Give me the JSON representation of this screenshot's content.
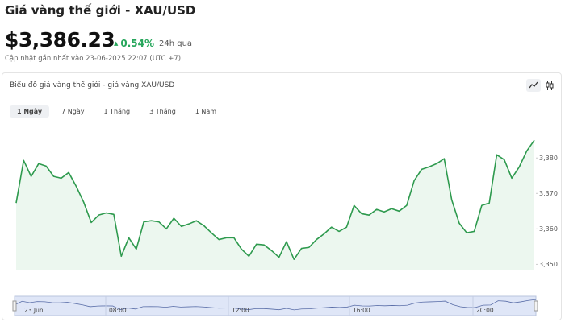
{
  "header": {
    "title": "Giá vàng thế giới - XAU/USD",
    "price": "$3,386.23",
    "change": "0.54%",
    "change_period": "24h qua",
    "updated": "Cập nhật gần nhất vào 23-06-2025 22:07 (UTC +7)"
  },
  "card": {
    "title": "Biểu đồ giá vàng thế giới - giá vàng XAU/USD",
    "tabs": [
      "1 Ngày",
      "7 Ngày",
      "1 Tháng",
      "3 Tháng",
      "1 Năm"
    ]
  },
  "navigator": {
    "labels": [
      "23 Jun",
      "08:00",
      "12:00",
      "16:00",
      "20:00"
    ]
  },
  "chart_data": {
    "type": "line",
    "color": "#2e9a4e",
    "fill": "#ecf7ef",
    "ylim": [
      3348.5,
      3390.5
    ],
    "yticks": [
      {
        "value": 3350,
        "label": "3,350"
      },
      {
        "value": 3360,
        "label": "3,360"
      },
      {
        "value": 3370,
        "label": "3,370"
      },
      {
        "value": 3380,
        "label": "3,380"
      }
    ],
    "values": [
      3367.3,
      3379.3,
      3374.8,
      3378.4,
      3377.7,
      3374.8,
      3374.3,
      3375.9,
      3372.0,
      3367.5,
      3361.8,
      3363.9,
      3364.5,
      3364.1,
      3352.3,
      3357.5,
      3354.3,
      3362.0,
      3362.3,
      3362.0,
      3360.0,
      3363.0,
      3360.7,
      3361.4,
      3362.3,
      3360.9,
      3358.9,
      3357.0,
      3357.5,
      3357.5,
      3354.3,
      3352.3,
      3355.7,
      3355.5,
      3353.9,
      3352.0,
      3356.4,
      3351.4,
      3354.5,
      3354.8,
      3357.0,
      3358.6,
      3360.5,
      3359.3,
      3360.5,
      3366.6,
      3364.3,
      3363.9,
      3365.5,
      3364.8,
      3365.7,
      3365.0,
      3366.6,
      3373.6,
      3376.8,
      3377.5,
      3378.4,
      3379.8,
      3368.2,
      3361.6,
      3358.9,
      3359.3,
      3366.6,
      3367.3,
      3380.9,
      3379.5,
      3374.3,
      3377.5,
      3382.0,
      3385.0
    ]
  }
}
